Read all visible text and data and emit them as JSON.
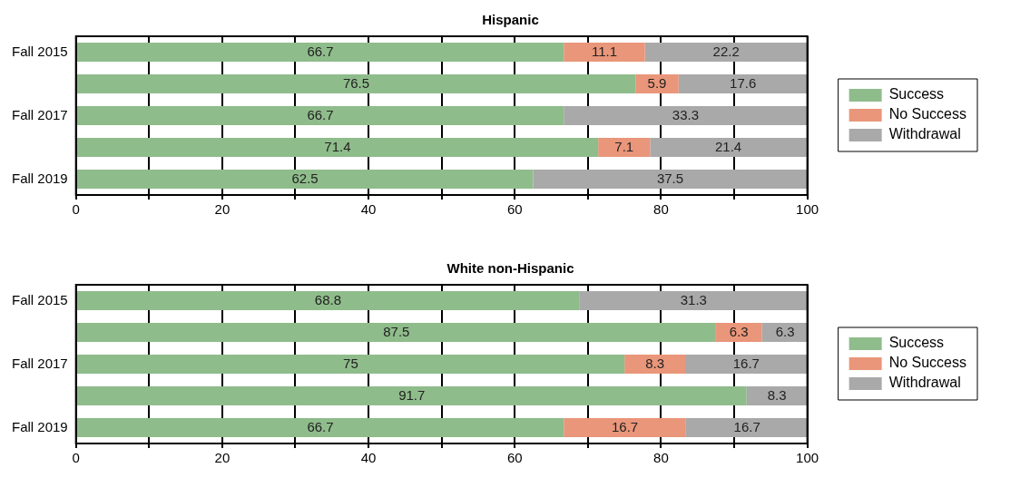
{
  "chart_data": [
    {
      "type": "bar",
      "orientation": "horizontal",
      "stacked": true,
      "title": "Hispanic",
      "categories": [
        "Fall 2015",
        null,
        "Fall 2017",
        null,
        "Fall 2019"
      ],
      "series": [
        {
          "name": "Success",
          "color": "#8fbc8b",
          "values": [
            66.7,
            76.5,
            66.7,
            71.4,
            62.5
          ]
        },
        {
          "name": "No Success",
          "color": "#e9967a",
          "values": [
            11.1,
            5.9,
            null,
            7.1,
            null
          ]
        },
        {
          "name": "Withdrawal",
          "color": "#a9a9a9",
          "values": [
            22.2,
            17.6,
            33.3,
            21.4,
            37.5
          ]
        }
      ],
      "xlim": [
        0,
        100
      ],
      "xticks": [
        0,
        {
          "value": 10,
          "label": null
        },
        20,
        {
          "value": 30,
          "label": null
        },
        40,
        {
          "value": 50,
          "label": null
        },
        60,
        {
          "value": 70,
          "label": null
        },
        80,
        {
          "value": 90,
          "label": null
        },
        100
      ],
      "grid": "x",
      "legend": "right",
      "data_labels": true
    },
    {
      "type": "bar",
      "orientation": "horizontal",
      "stacked": true,
      "title": "White non-Hispanic",
      "categories": [
        "Fall 2015",
        null,
        "Fall 2017",
        null,
        "Fall 2019"
      ],
      "series": [
        {
          "name": "Success",
          "color": "#8fbc8b",
          "values": [
            68.8,
            87.5,
            75,
            91.7,
            66.7
          ]
        },
        {
          "name": "No Success",
          "color": "#e9967a",
          "values": [
            null,
            6.3,
            8.3,
            null,
            16.7
          ]
        },
        {
          "name": "Withdrawal",
          "color": "#a9a9a9",
          "values": [
            31.3,
            6.3,
            16.7,
            8.3,
            16.7
          ]
        }
      ],
      "xlim": [
        0,
        100
      ],
      "xticks": [
        0,
        {
          "value": 10,
          "label": null
        },
        20,
        {
          "value": 30,
          "label": null
        },
        40,
        {
          "value": 50,
          "label": null
        },
        60,
        {
          "value": 70,
          "label": null
        },
        80,
        {
          "value": 90,
          "label": null
        },
        100
      ],
      "grid": "x",
      "legend": "right",
      "data_labels": true
    }
  ]
}
